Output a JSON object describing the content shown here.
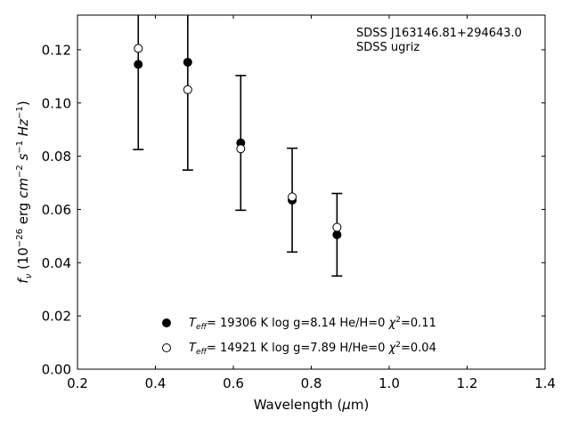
{
  "chart_data": {
    "type": "scatter",
    "xlabel": {
      "main": "Wavelength (",
      "mu": "μ",
      "rest": "m)"
    },
    "ylabel": {
      "f": "f",
      "nu": "ν",
      "a": " (10",
      "e1": "−26",
      "b": " erg ",
      "cm": "cm",
      "e2": "−2",
      "s": "s",
      "e3": "−1",
      "hz": "Hz",
      "e4": "−1",
      "c": ")"
    },
    "xlim": [
      0.2,
      1.4
    ],
    "ylim": [
      0.0,
      0.133
    ],
    "xticks": [
      0.2,
      0.4,
      0.6,
      0.8,
      1.0,
      1.2,
      1.4
    ],
    "xtick_labels": [
      "0.2",
      "0.4",
      "0.6",
      "0.8",
      "1.0",
      "1.2",
      "1.4"
    ],
    "yticks": [
      0.0,
      0.02,
      0.04,
      0.06,
      0.08,
      0.1,
      0.12
    ],
    "ytick_labels": [
      "0.00",
      "0.02",
      "0.04",
      "0.06",
      "0.08",
      "0.10",
      "0.12"
    ],
    "annotation": [
      "SDSS J163146.81+294643.0",
      "SDSS ugriz"
    ],
    "observed": {
      "x": [
        0.356,
        0.483,
        0.619,
        0.751,
        0.866
      ],
      "y": [
        0.1145,
        0.1153,
        0.085,
        0.0635,
        0.0505
      ],
      "err": [
        0.032,
        0.0405,
        0.0253,
        0.0195,
        0.0155
      ],
      "err_low_only": [
        true,
        false,
        false,
        false,
        false
      ]
    },
    "series": [
      {
        "name_parts": {
          "t": "T",
          "sub": "eff",
          "rest": "= 19306 K  log g=8.14  He/H=0  ",
          "chi": "χ",
          "sup": "2",
          "val": "=0.11"
        },
        "marker": "filled",
        "x": [
          0.356,
          0.483,
          0.619,
          0.751,
          0.866
        ],
        "y": [
          0.1145,
          0.1153,
          0.085,
          0.0635,
          0.0505
        ]
      },
      {
        "name_parts": {
          "t": "T",
          "sub": "eff",
          "rest": "= 14921 K  log g=7.89  H/He=0  ",
          "chi": "χ",
          "sup": "2",
          "val": "=0.04"
        },
        "marker": "open",
        "x": [
          0.356,
          0.483,
          0.619,
          0.751,
          0.866
        ],
        "y": [
          0.1205,
          0.105,
          0.0828,
          0.0647,
          0.0533
        ]
      }
    ],
    "legend_position": "lower-center",
    "grid": false
  }
}
